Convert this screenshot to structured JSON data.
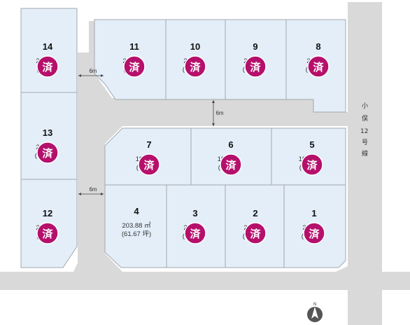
{
  "sold_mark": "済",
  "colors": {
    "sold": "#b5106b",
    "lot": "#e3eef9",
    "road": "#d9d9d9"
  },
  "lots": [
    {
      "id": "14",
      "number": "14",
      "area": "2",
      "tsubo": "(",
      "sold": true
    },
    {
      "id": "11",
      "number": "11",
      "area": "2",
      "tsubo": "(",
      "sold": true
    },
    {
      "id": "10",
      "number": "10",
      "area": "2",
      "tsubo": "(6",
      "sold": true
    },
    {
      "id": "9",
      "number": "9",
      "area": "2",
      "tsubo": "(6",
      "sold": true
    },
    {
      "id": "8",
      "number": "8",
      "area": "2",
      "tsubo": "(6",
      "sold": true
    },
    {
      "id": "13",
      "number": "13",
      "area": "2",
      "tsubo": "(6",
      "sold": true
    },
    {
      "id": "7",
      "number": "7",
      "area": "19",
      "tsubo": "(6",
      "sold": true
    },
    {
      "id": "6",
      "number": "6",
      "area": "19",
      "tsubo": "(6",
      "sold": true
    },
    {
      "id": "5",
      "number": "5",
      "area": "19",
      "tsubo": "(5",
      "sold": true
    },
    {
      "id": "12",
      "number": "12",
      "area": "2",
      "tsubo": "(",
      "sold": true
    },
    {
      "id": "4",
      "number": "4",
      "area": "203.88 ㎡",
      "tsubo": "(61.67 坪)",
      "sold": false
    },
    {
      "id": "3",
      "number": "3",
      "area": "2",
      "tsubo": "(6",
      "sold": true
    },
    {
      "id": "2",
      "number": "2",
      "area": "2",
      "tsubo": "(6",
      "sold": true
    },
    {
      "id": "1",
      "number": "1",
      "area": "2",
      "tsubo": "(6",
      "sold": true
    }
  ],
  "road_widths": {
    "upper": "6m",
    "center": "6m",
    "lower": "6m"
  },
  "street_name": "小俣12号線",
  "street_chars": [
    "小",
    "俣",
    "12",
    "号",
    "線"
  ],
  "north_label": "N"
}
